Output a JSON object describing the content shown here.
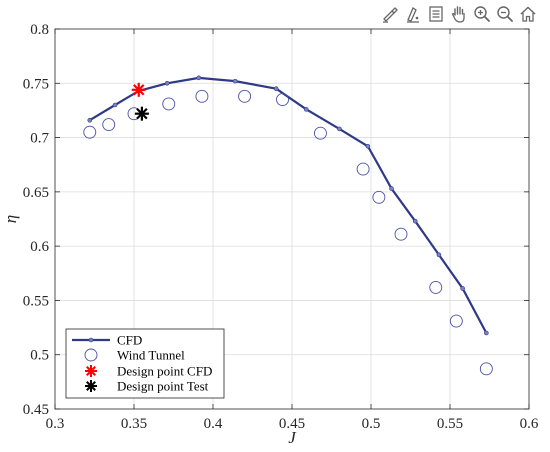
{
  "toolbar": {
    "buttons": [
      {
        "icon": "brush-icon"
      },
      {
        "icon": "data-tips-icon"
      },
      {
        "icon": "legend-icon"
      },
      {
        "icon": "pan-hand-icon"
      },
      {
        "icon": "zoom-in-icon"
      },
      {
        "icon": "zoom-out-icon"
      },
      {
        "icon": "home-icon"
      }
    ]
  },
  "chart_data": {
    "type": "line",
    "title": "",
    "xlabel": "J",
    "ylabel": "η",
    "xlim": [
      0.3,
      0.6
    ],
    "ylim": [
      0.45,
      0.8
    ],
    "xticks": [
      0.3,
      0.35,
      0.4,
      0.45,
      0.5,
      0.55,
      0.6
    ],
    "yticks": [
      0.45,
      0.5,
      0.55,
      0.6,
      0.65,
      0.7,
      0.75,
      0.8
    ],
    "xtick_labels": [
      "0.3",
      "0.35",
      "0.4",
      "0.45",
      "0.5",
      "0.55",
      "0.6"
    ],
    "ytick_labels": [
      "0.45",
      "0.5",
      "0.55",
      "0.6",
      "0.65",
      "0.7",
      "0.75",
      "0.8"
    ],
    "grid": true,
    "legend_position": "bottom-left",
    "series": [
      {
        "name": "CFD",
        "style": "line-with-dots",
        "color": "#2e3a87",
        "x": [
          0.322,
          0.338,
          0.353,
          0.371,
          0.391,
          0.414,
          0.44,
          0.459,
          0.48,
          0.498,
          0.513,
          0.528,
          0.543,
          0.558,
          0.573
        ],
        "y": [
          0.716,
          0.73,
          0.743,
          0.75,
          0.755,
          0.752,
          0.745,
          0.726,
          0.708,
          0.692,
          0.653,
          0.623,
          0.592,
          0.561,
          0.52
        ]
      },
      {
        "name": "Wind Tunnel",
        "style": "open-circle",
        "color": "#4b4fa8",
        "x": [
          0.322,
          0.334,
          0.35,
          0.372,
          0.393,
          0.42,
          0.444,
          0.468,
          0.495,
          0.505,
          0.519,
          0.541,
          0.554,
          0.573
        ],
        "y": [
          0.705,
          0.712,
          0.722,
          0.731,
          0.738,
          0.738,
          0.735,
          0.704,
          0.671,
          0.645,
          0.611,
          0.562,
          0.531,
          0.487
        ]
      },
      {
        "name": "Design point CFD",
        "style": "asterisk",
        "color": "#ff0000",
        "x": [
          0.353
        ],
        "y": [
          0.744
        ]
      },
      {
        "name": "Design point Test",
        "style": "asterisk",
        "color": "#000000",
        "x": [
          0.355
        ],
        "y": [
          0.722
        ]
      }
    ]
  }
}
